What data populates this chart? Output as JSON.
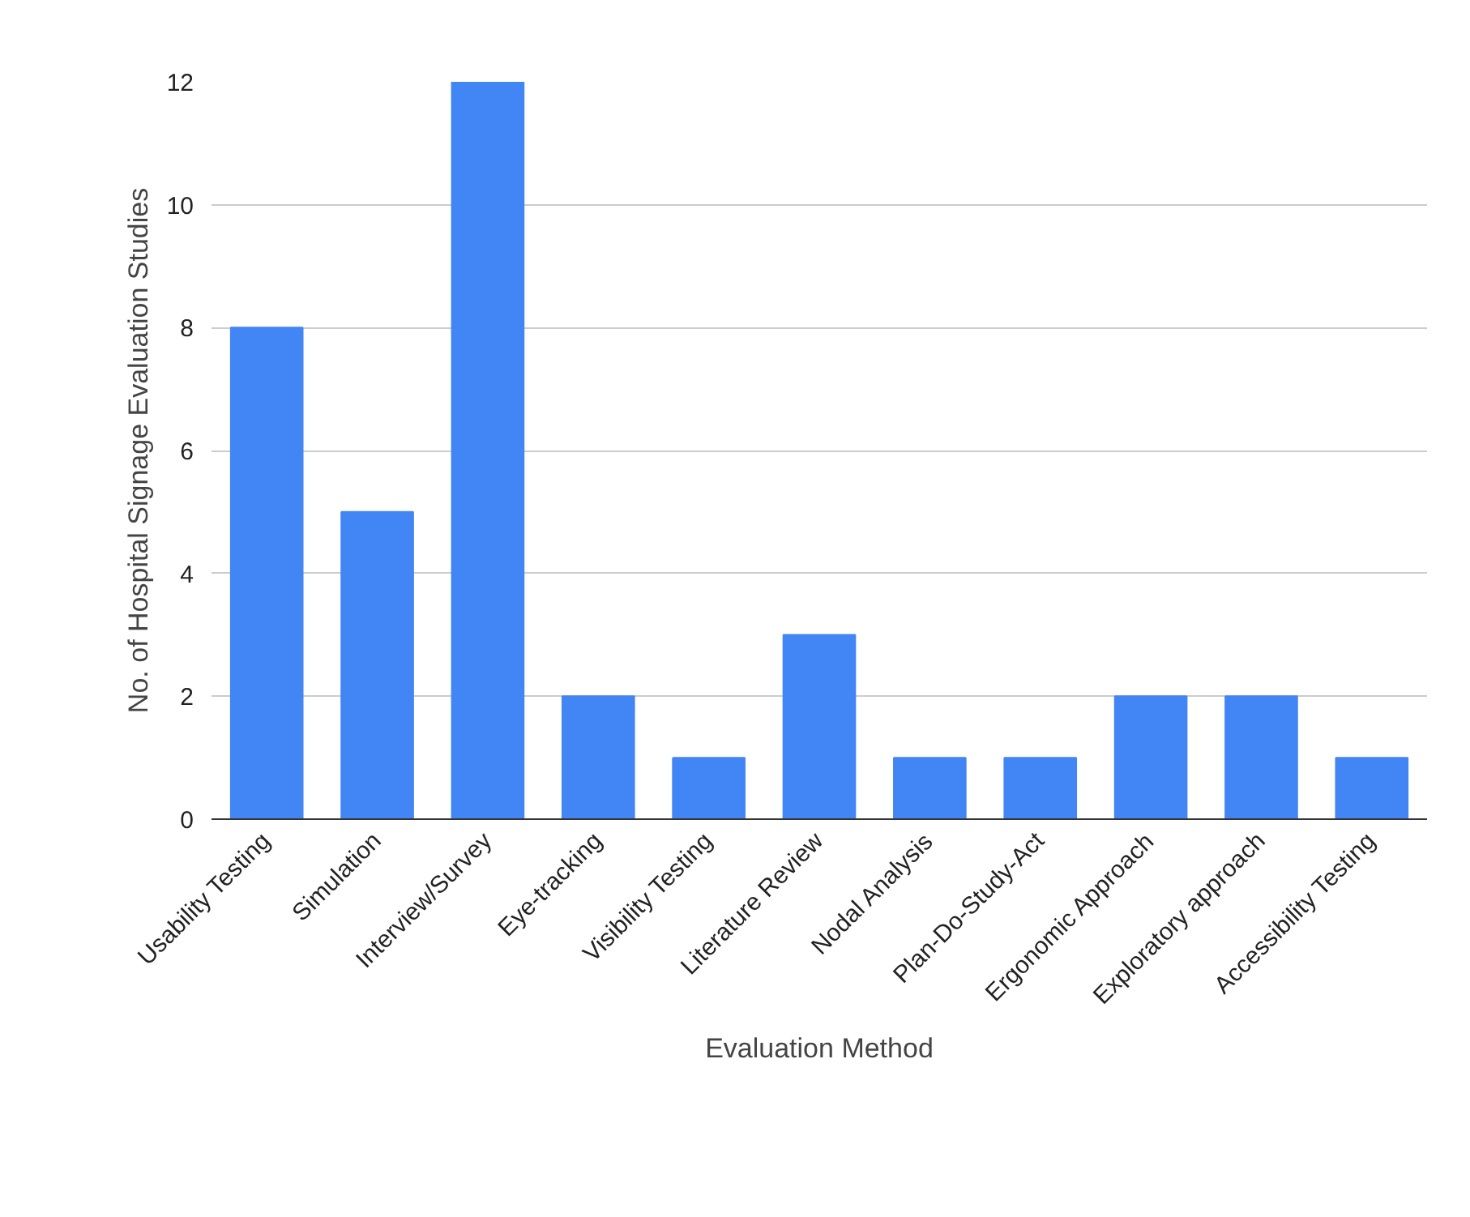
{
  "chart_data": {
    "type": "bar",
    "xlabel": "Evaluation Method",
    "ylabel": "No. of Hospital Signage Evaluation Studies",
    "categories": [
      "Usability Testing",
      "Simulation",
      "Interview/Survey",
      "Eye-tracking",
      "Visibility Testing",
      "Literature Review",
      "Nodal Analysis",
      "Plan-Do-Study-Act",
      "Ergonomic Approach",
      "Exploratory approach",
      "Accessibility Testing"
    ],
    "values": [
      8,
      5,
      12,
      2,
      1,
      3,
      1,
      1,
      2,
      2,
      1
    ],
    "color": "#4285f4",
    "ylim": [
      0,
      12
    ],
    "yticks": [
      0,
      2,
      4,
      6,
      8,
      10,
      12
    ],
    "grid": "y"
  }
}
